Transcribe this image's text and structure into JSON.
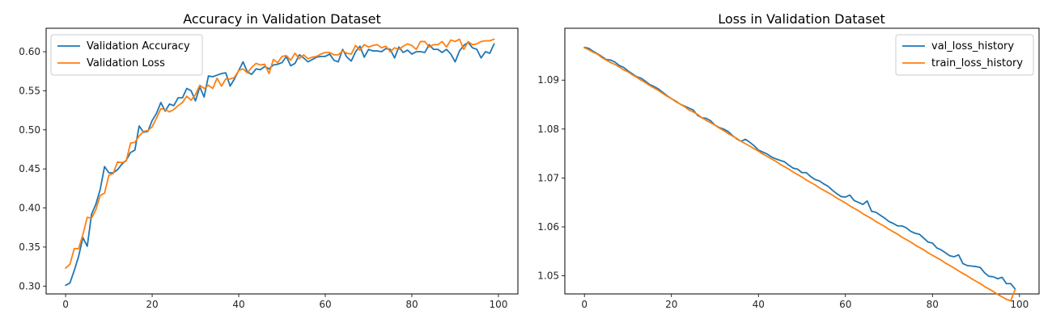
{
  "colors": {
    "series_blue": "#1f77b4",
    "series_orange": "#ff7f0e",
    "axis": "#000000"
  },
  "chart_data": [
    {
      "type": "line",
      "title": "Accuracy in Validation Dataset",
      "xlim": [
        0,
        100
      ],
      "ylim": [
        0.29,
        0.63
      ],
      "xticks": [
        "0",
        "20",
        "40",
        "60",
        "80",
        "100"
      ],
      "xtick_values": [
        0,
        20,
        40,
        60,
        80,
        100
      ],
      "yticks": [
        "0.30",
        "0.35",
        "0.40",
        "0.45",
        "0.50",
        "0.55",
        "0.60"
      ],
      "ytick_values": [
        0.3,
        0.35,
        0.4,
        0.45,
        0.5,
        0.55,
        0.6
      ],
      "legend_position": "top-left",
      "grid": false,
      "series": [
        {
          "name": "Validation Accuracy",
          "color": "#1f77b4",
          "x_start": 0,
          "values": [
            0.301,
            0.304,
            0.32,
            0.338,
            0.362,
            0.351,
            0.392,
            0.405,
            0.424,
            0.453,
            0.445,
            0.445,
            0.449,
            0.456,
            0.461,
            0.471,
            0.474,
            0.505,
            0.497,
            0.498,
            0.512,
            0.521,
            0.535,
            0.524,
            0.533,
            0.531,
            0.541,
            0.541,
            0.553,
            0.55,
            0.537,
            0.555,
            0.542,
            0.569,
            0.568,
            0.57,
            0.572,
            0.573,
            0.556,
            0.565,
            0.576,
            0.587,
            0.574,
            0.571,
            0.578,
            0.577,
            0.581,
            0.578,
            0.583,
            0.584,
            0.586,
            0.594,
            0.582,
            0.585,
            0.596,
            0.592,
            0.587,
            0.59,
            0.593,
            0.594,
            0.594,
            0.597,
            0.589,
            0.587,
            0.603,
            0.593,
            0.588,
            0.6,
            0.607,
            0.593,
            0.603,
            0.601,
            0.601,
            0.6,
            0.604,
            0.603,
            0.592,
            0.606,
            0.599,
            0.602,
            0.597,
            0.6,
            0.6,
            0.599,
            0.609,
            0.603,
            0.603,
            0.599,
            0.603,
            0.597,
            0.587,
            0.601,
            0.608,
            0.612,
            0.605,
            0.603,
            0.592,
            0.6,
            0.598,
            0.61
          ]
        },
        {
          "name": "Validation Loss",
          "color": "#ff7f0e",
          "x_start": 0,
          "values": [
            0.323,
            0.328,
            0.348,
            0.348,
            0.366,
            0.388,
            0.387,
            0.398,
            0.416,
            0.419,
            0.442,
            0.444,
            0.459,
            0.458,
            0.46,
            0.483,
            0.484,
            0.492,
            0.498,
            0.499,
            0.504,
            0.515,
            0.527,
            0.526,
            0.523,
            0.526,
            0.531,
            0.535,
            0.543,
            0.538,
            0.545,
            0.557,
            0.553,
            0.557,
            0.553,
            0.566,
            0.556,
            0.565,
            0.565,
            0.567,
            0.576,
            0.578,
            0.573,
            0.58,
            0.585,
            0.583,
            0.584,
            0.572,
            0.59,
            0.586,
            0.594,
            0.595,
            0.589,
            0.598,
            0.591,
            0.596,
            0.591,
            0.593,
            0.594,
            0.597,
            0.599,
            0.599,
            0.596,
            0.596,
            0.601,
            0.598,
            0.597,
            0.608,
            0.602,
            0.609,
            0.606,
            0.608,
            0.609,
            0.605,
            0.607,
            0.6,
            0.605,
            0.603,
            0.607,
            0.61,
            0.608,
            0.603,
            0.613,
            0.613,
            0.606,
            0.609,
            0.609,
            0.613,
            0.606,
            0.615,
            0.613,
            0.616,
            0.603,
            0.613,
            0.609,
            0.61,
            0.613,
            0.614,
            0.614,
            0.616
          ]
        }
      ]
    },
    {
      "type": "line",
      "title": "Loss in Validation Dataset",
      "xlim": [
        0,
        100
      ],
      "ylim": [
        1.0463,
        1.1006
      ],
      "xticks": [
        "0",
        "20",
        "40",
        "60",
        "80",
        "100"
      ],
      "xtick_values": [
        0,
        20,
        40,
        60,
        80,
        100
      ],
      "yticks": [
        "1.05",
        "1.06",
        "1.07",
        "1.08",
        "1.09"
      ],
      "ytick_values": [
        1.05,
        1.06,
        1.07,
        1.08,
        1.09
      ],
      "legend_position": "top-right",
      "grid": false,
      "series": [
        {
          "name": "val_loss_history",
          "color": "#1f77b4",
          "x_start": 0,
          "values": [
            1.0967,
            1.0965,
            1.0959,
            1.0954,
            1.0948,
            1.0942,
            1.0941,
            1.0937,
            1.093,
            1.0926,
            1.0919,
            1.0913,
            1.0907,
            1.0904,
            1.0898,
            1.0891,
            1.0887,
            1.0882,
            1.0875,
            1.0868,
            1.0862,
            1.0857,
            1.0851,
            1.0847,
            1.0843,
            1.0839,
            1.0828,
            1.0823,
            1.0822,
            1.0817,
            1.0808,
            1.0803,
            1.08,
            1.0795,
            1.0787,
            1.078,
            1.0775,
            1.0779,
            1.0773,
            1.0766,
            1.0757,
            1.0753,
            1.0749,
            1.0743,
            1.0739,
            1.0736,
            1.0733,
            1.0726,
            1.072,
            1.0718,
            1.0711,
            1.0711,
            1.0703,
            1.0697,
            1.0694,
            1.0688,
            1.0683,
            1.0675,
            1.0668,
            1.0662,
            1.0661,
            1.0665,
            1.0654,
            1.065,
            1.0646,
            1.0653,
            1.0632,
            1.063,
            1.0624,
            1.0618,
            1.0611,
            1.0607,
            1.0602,
            1.0602,
            1.0598,
            1.0591,
            1.0587,
            1.0585,
            1.0577,
            1.0569,
            1.0567,
            1.0557,
            1.0553,
            1.0547,
            1.0541,
            1.0539,
            1.0543,
            1.0525,
            1.0521,
            1.052,
            1.0519,
            1.0517,
            1.0506,
            1.0499,
            1.0498,
            1.0494,
            1.0497,
            1.0484,
            1.0484,
            1.0473
          ]
        },
        {
          "name": "train_loss_history",
          "color": "#ff7f0e",
          "x_start": 0,
          "values": [
            1.0966,
            1.0962,
            1.0957,
            1.0953,
            1.0946,
            1.0941,
            1.0936,
            1.0932,
            1.0927,
            1.0921,
            1.0917,
            1.0911,
            1.0906,
            1.09,
            1.0895,
            1.0889,
            1.0884,
            1.0879,
            1.0873,
            1.0867,
            1.0862,
            1.0856,
            1.0851,
            1.0846,
            1.0839,
            1.0835,
            1.083,
            1.0823,
            1.0818,
            1.0813,
            1.0808,
            1.0802,
            1.0797,
            1.0791,
            1.0786,
            1.0781,
            1.0775,
            1.077,
            1.0765,
            1.076,
            1.0755,
            1.0749,
            1.0744,
            1.0739,
            1.0734,
            1.0728,
            1.0723,
            1.0718,
            1.0712,
            1.0707,
            1.0702,
            1.0696,
            1.0691,
            1.0686,
            1.068,
            1.0675,
            1.067,
            1.0665,
            1.0659,
            1.0654,
            1.0649,
            1.0643,
            1.0638,
            1.0633,
            1.0627,
            1.0622,
            1.0617,
            1.0611,
            1.0606,
            1.0601,
            1.0595,
            1.059,
            1.0585,
            1.0579,
            1.0574,
            1.0569,
            1.0563,
            1.0558,
            1.0553,
            1.0547,
            1.0542,
            1.0537,
            1.0532,
            1.0526,
            1.0521,
            1.0516,
            1.051,
            1.0505,
            1.05,
            1.0494,
            1.0489,
            1.0484,
            1.0478,
            1.0473,
            1.0468,
            1.0462,
            1.0457,
            1.0452,
            1.0449,
            1.0472
          ]
        }
      ]
    }
  ]
}
